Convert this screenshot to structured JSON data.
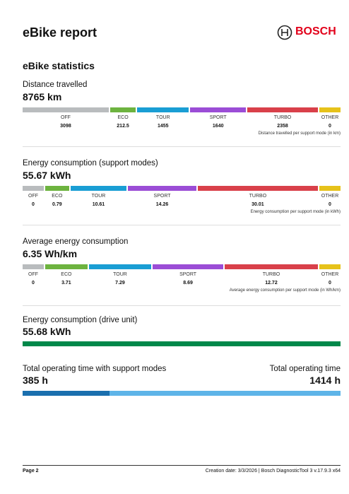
{
  "header": {
    "title": "eBike report",
    "logo": "BOSCH"
  },
  "section_title": "eBike statistics",
  "panels": [
    {
      "label": "Distance travelled",
      "total": "8765 km",
      "caption": "Distance travelled per support mode (in km)",
      "segments": [
        {
          "name": "OFF",
          "value": 3098,
          "color": "#b9bcbe"
        },
        {
          "name": "ECO",
          "value": 212.5,
          "color": "#6db33f"
        },
        {
          "name": "TOUR",
          "value": 1455,
          "color": "#1a9ed4"
        },
        {
          "name": "SPORT",
          "value": 1640,
          "color": "#9b4dd6"
        },
        {
          "name": "TURBO",
          "value": 2358,
          "color": "#d9404a"
        },
        {
          "name": "OTHER",
          "value": 0,
          "color": "#e6c21a"
        }
      ]
    },
    {
      "label": "Energy consumption (support modes)",
      "total": "55.67 kWh",
      "caption": "Energy consumption per support mode (in kWh)",
      "segments": [
        {
          "name": "OFF",
          "value": 0,
          "color": "#b9bcbe"
        },
        {
          "name": "ECO",
          "value": 0.79,
          "color": "#6db33f"
        },
        {
          "name": "TOUR",
          "value": 10.61,
          "color": "#1a9ed4"
        },
        {
          "name": "SPORT",
          "value": 14.26,
          "color": "#9b4dd6"
        },
        {
          "name": "TURBO",
          "value": 30.01,
          "color": "#d9404a"
        },
        {
          "name": "OTHER",
          "value": 0,
          "color": "#e6c21a"
        }
      ]
    },
    {
      "label": "Average energy consumption",
      "total": "6.35 Wh/km",
      "caption": "Average energy consumption per support mode (in Wh/km)",
      "segments": [
        {
          "name": "OFF",
          "value": 0,
          "color": "#b9bcbe"
        },
        {
          "name": "ECO",
          "value": 3.71,
          "color": "#6db33f"
        },
        {
          "name": "TOUR",
          "value": 7.29,
          "color": "#1a9ed4"
        },
        {
          "name": "SPORT",
          "value": 8.69,
          "color": "#9b4dd6"
        },
        {
          "name": "TURBO",
          "value": 12.72,
          "color": "#d9404a"
        },
        {
          "name": "OTHER",
          "value": 0,
          "color": "#e6c21a"
        }
      ]
    }
  ],
  "drive_unit": {
    "label": "Energy consumption (drive unit)",
    "total": "55.68 kWh",
    "color": "#00884a"
  },
  "operating_time": {
    "support": {
      "label": "Total operating time with support modes",
      "value": 385,
      "unit": "h",
      "color": "#1a6fae"
    },
    "total": {
      "label": "Total operating time",
      "value": 1414,
      "unit": "h",
      "color": "#5eb4e8"
    }
  },
  "footer": {
    "page": "Page 2",
    "info": "Creation date: 3/3/2026 | Bosch DiagnosticTool 3 v.17.9.3 x64"
  }
}
